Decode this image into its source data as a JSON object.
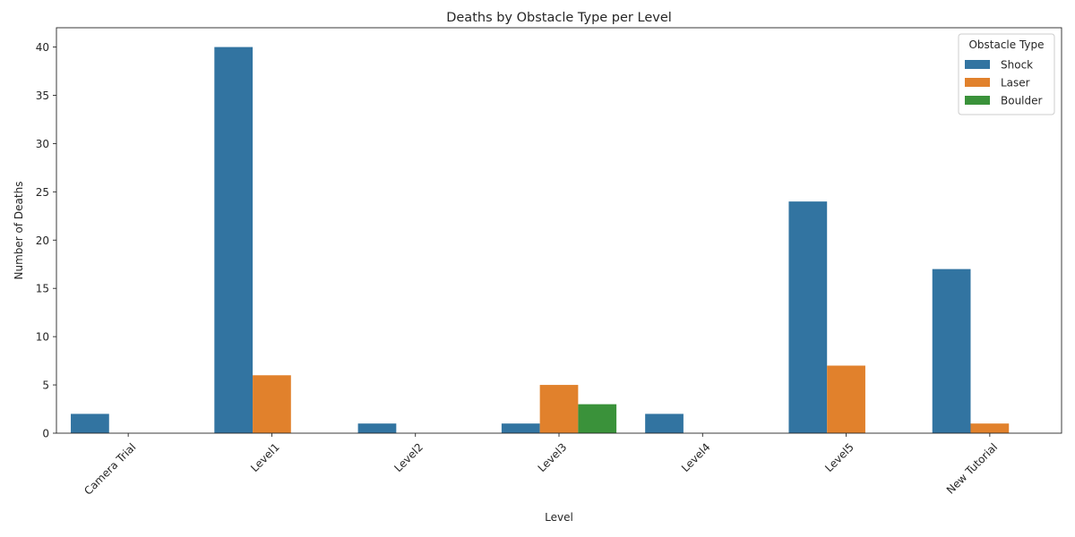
{
  "chart_data": {
    "type": "bar",
    "title": "Deaths by Obstacle Type per Level",
    "xlabel": "Level",
    "ylabel": "Number of Deaths",
    "categories": [
      "Camera Trial",
      "Level1",
      "Level2",
      "Level3",
      "Level4",
      "Level5",
      "New Tutorial"
    ],
    "series": [
      {
        "name": "Shock",
        "color": "#3274a1",
        "values": [
          2,
          40,
          1,
          1,
          2,
          24,
          17
        ]
      },
      {
        "name": "Laser",
        "color": "#e1812c",
        "values": [
          0,
          6,
          0,
          5,
          0,
          7,
          1
        ]
      },
      {
        "name": "Boulder",
        "color": "#3a923a",
        "values": [
          0,
          0,
          0,
          3,
          0,
          0,
          0
        ]
      }
    ],
    "ylim": [
      0,
      42
    ],
    "yticks": [
      0,
      5,
      10,
      15,
      20,
      25,
      30,
      35,
      40
    ],
    "legend": {
      "title": "Obstacle Type",
      "placement": "top-right"
    },
    "grid": false
  }
}
